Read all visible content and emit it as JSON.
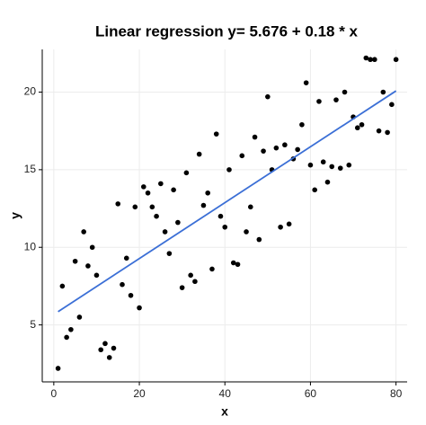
{
  "chart_data": {
    "type": "scatter",
    "title": "Linear regression y= 5.676 + 0.18 * x",
    "xlabel": "x",
    "ylabel": "y",
    "x": [
      1,
      2,
      3,
      4,
      5,
      6,
      7,
      8,
      9,
      10,
      11,
      12,
      13,
      14,
      15,
      16,
      17,
      18,
      19,
      20,
      21,
      22,
      23,
      24,
      25,
      26,
      27,
      28,
      29,
      30,
      31,
      32,
      33,
      34,
      35,
      36,
      37,
      38,
      39,
      40,
      41,
      42,
      43,
      44,
      45,
      46,
      47,
      48,
      49,
      50,
      51,
      52,
      53,
      54,
      55,
      56,
      57,
      58,
      59,
      60,
      61,
      62,
      63,
      64,
      65,
      66,
      67,
      68,
      69,
      70,
      71,
      72,
      73,
      74,
      75,
      76,
      77,
      78,
      79,
      80
    ],
    "values": [
      2.2,
      7.5,
      4.2,
      4.7,
      9.1,
      5.5,
      11,
      8.8,
      10,
      8.2,
      3.4,
      3.8,
      2.9,
      3.5,
      12.8,
      7.6,
      9.3,
      6.9,
      12.6,
      6.1,
      13.9,
      13.5,
      12.6,
      12,
      14.1,
      11,
      9.6,
      13.7,
      11.6,
      7.4,
      14.8,
      8.2,
      7.8,
      16,
      12.7,
      13.5,
      8.6,
      17.3,
      12,
      11.3,
      15,
      9,
      8.9,
      15.9,
      11,
      12.6,
      17.1,
      10.5,
      16.2,
      19.7,
      15,
      16.4,
      11.3,
      16.6,
      11.5,
      15.7,
      16.3,
      17.9,
      20.6,
      15.3,
      13.7,
      19.4,
      15.5,
      14.2,
      15.2,
      19.5,
      15.1,
      20,
      15.3,
      18.4,
      17.7,
      17.9,
      22.2,
      22.1,
      22.1,
      17.5,
      20,
      17.4,
      19.2,
      22.1
    ],
    "color": "#000000",
    "fit": {
      "x": [
        1,
        80
      ],
      "values": [
        5.856,
        20.076
      ],
      "color": "#3b6fd6"
    },
    "xlim": [
      -2.7,
      82.6
    ],
    "ylim": [
      1.33,
      22.75
    ],
    "xticks": [
      0,
      20,
      40,
      60,
      80
    ],
    "yticks": [
      5,
      10,
      15,
      20
    ],
    "grid": true
  }
}
